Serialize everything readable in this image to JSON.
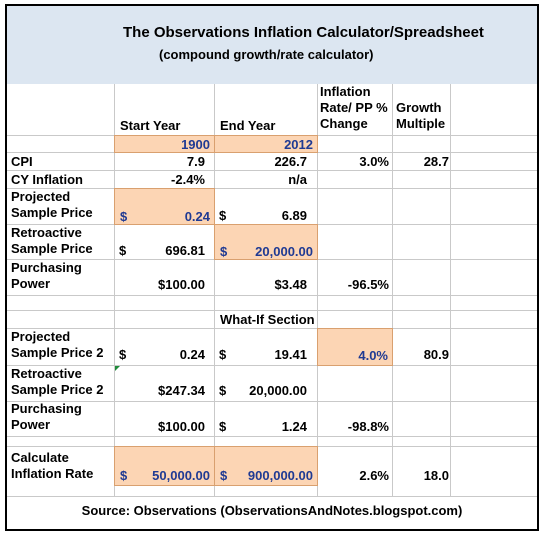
{
  "title": "The Observations Inflation Calculator/Spreadsheet",
  "subtitle": "(compound growth/rate calculator)",
  "headers": {
    "start_year": "Start Year",
    "end_year": "End Year",
    "inflation_rate": [
      "Inflation",
      "Rate/ PP %",
      "Change"
    ],
    "growth_multiple": [
      "Growth",
      "Multiple"
    ]
  },
  "years": {
    "start": "1900",
    "end": "2012"
  },
  "rows": {
    "cpi": {
      "label": "CPI",
      "start": "7.9",
      "end": "226.7",
      "rate": "3.0%",
      "growth": "28.7"
    },
    "cy_inflation": {
      "label": "CY Inflation",
      "start": "-2.4%",
      "end": "n/a"
    },
    "projected": {
      "label": [
        "Projected",
        "Sample Price"
      ],
      "start_cur": "$",
      "start": "0.24",
      "end_cur": "$",
      "end": "6.89"
    },
    "retroactive": {
      "label": [
        "Retroactive",
        "Sample Price"
      ],
      "start_cur": "$",
      "start": "696.81",
      "end_cur": "$",
      "end": "20,000.00"
    },
    "purchasing": {
      "label": [
        "Purchasing",
        "Power"
      ],
      "start": "$100.00",
      "end": "$3.48",
      "rate": "-96.5%"
    }
  },
  "whatif": {
    "title": "What-If Section",
    "projected2": {
      "label": [
        "Projected",
        "Sample Price 2"
      ],
      "start_cur": "$",
      "start": "0.24",
      "end_cur": "$",
      "end": "19.41",
      "rate": "4.0%",
      "growth": "80.9"
    },
    "retroactive2": {
      "label": [
        "Retroactive",
        "Sample Price 2"
      ],
      "start": "$247.34",
      "end_cur": "$",
      "end": "20,000.00"
    },
    "purchasing2": {
      "label": [
        "Purchasing",
        "Power"
      ],
      "start": "$100.00",
      "end_cur": "$",
      "end": "1.24",
      "rate": "-98.8%"
    },
    "calculate": {
      "label": [
        "Calculate",
        "Inflation Rate"
      ],
      "start_cur": "$",
      "start": "50,000.00",
      "end_cur": "$",
      "end": "900,000.00",
      "rate": "2.6%",
      "growth": "18.0"
    }
  },
  "source": "Source: Observations (ObservationsAndNotes.blogspot.com)",
  "colors": {
    "title_band": "#dce6f1",
    "input_cell": "#fcd5b4",
    "grid": "#c9c9c9",
    "input_text": "#1f3a93"
  }
}
